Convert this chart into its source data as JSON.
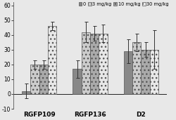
{
  "groups": [
    "RGFP109",
    "RGFP136",
    "D2"
  ],
  "series_labels": [
    "0",
    "3 mg/kg",
    "10 mg/kg",
    "30 mg/kg"
  ],
  "values": [
    [
      2,
      20,
      20,
      46
    ],
    [
      17,
      42,
      41,
      41
    ],
    [
      29,
      35,
      30,
      30
    ]
  ],
  "errors": [
    [
      5,
      3,
      3,
      3
    ],
    [
      6,
      7,
      5,
      6
    ],
    [
      8,
      6,
      5,
      13
    ]
  ],
  "hatches": [
    "",
    "...",
    "...",
    "..."
  ],
  "facecolors": [
    "#888888",
    "#cccccc",
    "#aaaaaa",
    "#e8e8e8"
  ],
  "bar_edge_color": "#555555",
  "ylim": [
    -10,
    62
  ],
  "yticks": [
    -10,
    0,
    10,
    20,
    30,
    40,
    50,
    60
  ],
  "ylabel": "",
  "xlabel": "",
  "title": "",
  "bar_width": 0.17,
  "background_color": "#e8e8e8",
  "figsize": [
    2.5,
    1.71
  ],
  "dpi": 100,
  "fontsize_tick": 5.5,
  "fontsize_legend": 4.8,
  "fontsize_xticklabel": 6.5
}
